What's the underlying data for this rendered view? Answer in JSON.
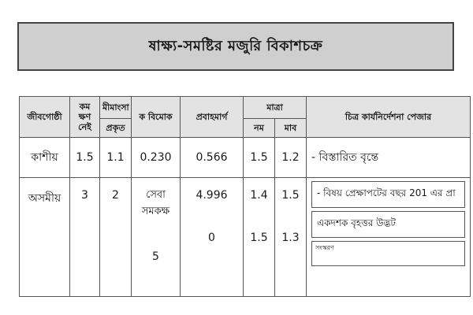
{
  "title": "ষাক্ষ্য-সমষ্টির মজুরি বিকাশচক্র",
  "table": {
    "headers": {
      "name": "জীবগোষ্ঠী",
      "col2": "কম ক্ষণ নেই",
      "col3_top": "মীমাংসা",
      "col3_bottom": "প্রকৃত",
      "col4": "ক বিমোক",
      "col5": "প্রবাহমার্গ",
      "range": "মাত্রা",
      "range_low": "নম",
      "range_high": "মাব",
      "notes": "চিত্র কাৰ্যনির্দেশনা পেজার"
    },
    "rows": [
      {
        "name": "কাশীয়",
        "c2": "1.5",
        "c3": "1.1",
        "c4": "0.230",
        "c5": "0.566",
        "low": "1.5",
        "high": "1.2",
        "notes": [
          "- বিস্তারিত বৃন্তে"
        ]
      },
      {
        "name": "অসমীয়",
        "c2": "3",
        "c3": "2",
        "c4": "সেবা সমকক্ষ",
        "c4b": "5",
        "c5": "4.996",
        "c5b": "0",
        "low": "1.4",
        "lowb": "1.5",
        "high": "1.5",
        "highb": "1.3",
        "notes": [
          "- বিষয় প্রেক্ষাপটের বছর 201 এর প্রা",
          "একদশক বৃহত্তর উদ্ভট",
          "সংস্করণ"
        ]
      }
    ]
  }
}
